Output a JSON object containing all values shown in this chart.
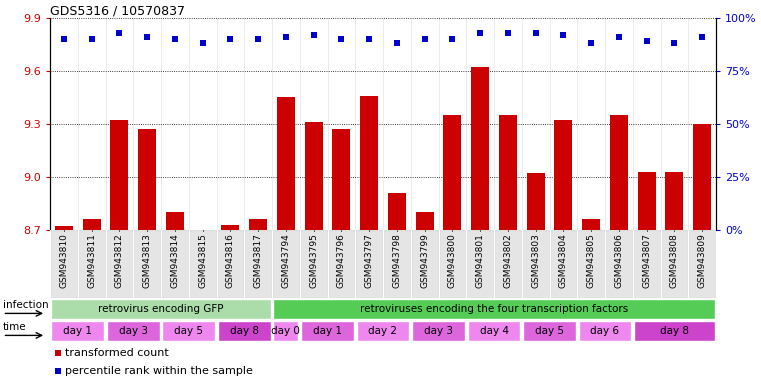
{
  "title": "GDS5316 / 10570837",
  "samples": [
    "GSM943810",
    "GSM943811",
    "GSM943812",
    "GSM943813",
    "GSM943814",
    "GSM943815",
    "GSM943816",
    "GSM943817",
    "GSM943794",
    "GSM943795",
    "GSM943796",
    "GSM943797",
    "GSM943798",
    "GSM943799",
    "GSM943800",
    "GSM943801",
    "GSM943802",
    "GSM943803",
    "GSM943804",
    "GSM943805",
    "GSM943806",
    "GSM943807",
    "GSM943808",
    "GSM943809"
  ],
  "transformed_count": [
    8.72,
    8.76,
    9.32,
    9.27,
    8.8,
    8.68,
    8.73,
    8.76,
    9.45,
    9.31,
    9.27,
    9.46,
    8.91,
    8.8,
    9.35,
    9.62,
    9.35,
    9.02,
    9.32,
    8.76,
    9.35,
    9.03,
    9.03,
    9.3
  ],
  "percentile_rank": [
    90,
    90,
    93,
    91,
    90,
    88,
    90,
    90,
    91,
    92,
    90,
    90,
    88,
    90,
    90,
    93,
    93,
    93,
    92,
    88,
    91,
    89,
    88,
    91
  ],
  "ylim_left": [
    8.7,
    9.9
  ],
  "ylim_right": [
    0,
    100
  ],
  "yticks_left": [
    8.7,
    9.0,
    9.3,
    9.6,
    9.9
  ],
  "yticks_right": [
    0,
    25,
    50,
    75,
    100
  ],
  "bar_color": "#cc0000",
  "dot_color": "#0000cc",
  "background_color": "#ffffff",
  "tick_bg_color": "#cccccc",
  "infection_groups": [
    {
      "label": "retrovirus encoding GFP",
      "start": 0,
      "end": 8,
      "color": "#aaddaa"
    },
    {
      "label": "retroviruses encoding the four transcription factors",
      "start": 8,
      "end": 24,
      "color": "#55cc55"
    }
  ],
  "time_groups": [
    {
      "label": "day 1",
      "start": 0,
      "end": 2,
      "color": "#ee88ee"
    },
    {
      "label": "day 3",
      "start": 2,
      "end": 4,
      "color": "#dd66dd"
    },
    {
      "label": "day 5",
      "start": 4,
      "end": 6,
      "color": "#ee88ee"
    },
    {
      "label": "day 8",
      "start": 6,
      "end": 8,
      "color": "#cc44cc"
    },
    {
      "label": "day 0",
      "start": 8,
      "end": 9,
      "color": "#ee88ee"
    },
    {
      "label": "day 1",
      "start": 9,
      "end": 11,
      "color": "#dd66dd"
    },
    {
      "label": "day 2",
      "start": 11,
      "end": 13,
      "color": "#ee88ee"
    },
    {
      "label": "day 3",
      "start": 13,
      "end": 15,
      "color": "#dd66dd"
    },
    {
      "label": "day 4",
      "start": 15,
      "end": 17,
      "color": "#ee88ee"
    },
    {
      "label": "day 5",
      "start": 17,
      "end": 19,
      "color": "#dd66dd"
    },
    {
      "label": "day 6",
      "start": 19,
      "end": 21,
      "color": "#ee88ee"
    },
    {
      "label": "day 8",
      "start": 21,
      "end": 24,
      "color": "#cc44cc"
    }
  ]
}
